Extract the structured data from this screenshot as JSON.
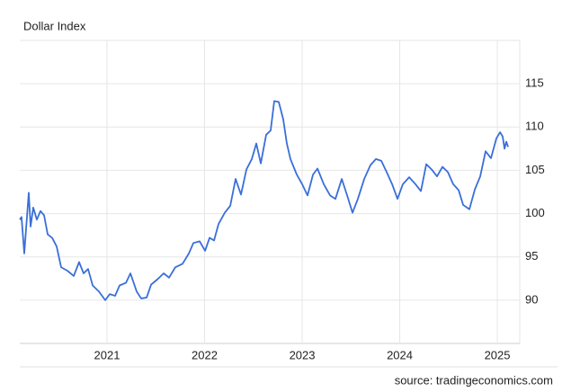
{
  "chart_data": {
    "type": "line",
    "title": "Dollar Index",
    "source": "source: tradingeconomics.com",
    "x": [
      2020.106,
      2020.124,
      2020.152,
      2020.198,
      2020.217,
      2020.244,
      2020.281,
      2020.318,
      2020.355,
      2020.392,
      2020.438,
      2020.484,
      2020.53,
      2020.594,
      2020.659,
      2020.714,
      2020.76,
      2020.806,
      2020.853,
      2020.917,
      2020.982,
      2021.028,
      2021.083,
      2021.129,
      2021.194,
      2021.24,
      2021.304,
      2021.35,
      2021.406,
      2021.452,
      2021.516,
      2021.581,
      2021.636,
      2021.7,
      2021.774,
      2021.839,
      2021.885,
      2021.949,
      2022.005,
      2022.051,
      2022.097,
      2022.143,
      2022.207,
      2022.263,
      2022.318,
      2022.373,
      2022.429,
      2022.484,
      2022.53,
      2022.576,
      2022.631,
      2022.677,
      2022.714,
      2022.76,
      2022.806,
      2022.843,
      2022.88,
      2022.945,
      2023.0,
      2023.055,
      2023.111,
      2023.157,
      2023.221,
      2023.286,
      2023.341,
      2023.406,
      2023.461,
      2023.516,
      2023.571,
      2023.636,
      2023.7,
      2023.756,
      2023.811,
      2023.866,
      2023.922,
      2023.977,
      2024.032,
      2024.097,
      2024.161,
      2024.217,
      2024.272,
      2024.327,
      2024.382,
      2024.438,
      2024.493,
      2024.548,
      2024.604,
      2024.65,
      2024.714,
      2024.77,
      2024.825,
      2024.88,
      2024.935,
      2024.991,
      2025.028,
      2025.055,
      2025.074,
      2025.092,
      2025.111
    ],
    "series": [
      {
        "name": "Dollar Index",
        "color": "#3a6fd8",
        "values": [
          99.3,
          99.6,
          95.4,
          102.4,
          98.5,
          100.7,
          99.3,
          100.3,
          99.8,
          97.6,
          97.2,
          96.2,
          93.8,
          93.4,
          92.8,
          94.4,
          93.1,
          93.6,
          91.7,
          91.0,
          90.0,
          90.7,
          90.5,
          91.7,
          92.0,
          93.1,
          91.0,
          90.2,
          90.3,
          91.8,
          92.4,
          93.1,
          92.6,
          93.8,
          94.2,
          95.4,
          96.6,
          96.8,
          95.7,
          97.2,
          96.9,
          98.8,
          100.1,
          100.9,
          104.0,
          102.2,
          105.1,
          106.3,
          108.1,
          105.8,
          109.1,
          109.6,
          113.0,
          112.9,
          110.9,
          108.1,
          106.3,
          104.5,
          103.4,
          102.1,
          104.5,
          105.2,
          103.4,
          102.1,
          101.7,
          104.0,
          102.1,
          100.1,
          101.7,
          104.0,
          105.6,
          106.3,
          106.1,
          104.8,
          103.4,
          101.7,
          103.4,
          104.2,
          103.4,
          102.6,
          105.7,
          105.1,
          104.3,
          105.4,
          104.8,
          103.4,
          102.7,
          101.0,
          100.5,
          102.8,
          104.3,
          107.2,
          106.4,
          108.7,
          109.4,
          108.9,
          107.5,
          108.3,
          107.7
        ]
      }
    ],
    "xlim": [
      2020.106,
      2025.23
    ],
    "xticks": [
      2021,
      2022,
      2023,
      2024,
      2025
    ],
    "ylim": [
      85,
      120
    ],
    "yticks": [
      90,
      95,
      100,
      105,
      110,
      115
    ],
    "grid": true
  }
}
